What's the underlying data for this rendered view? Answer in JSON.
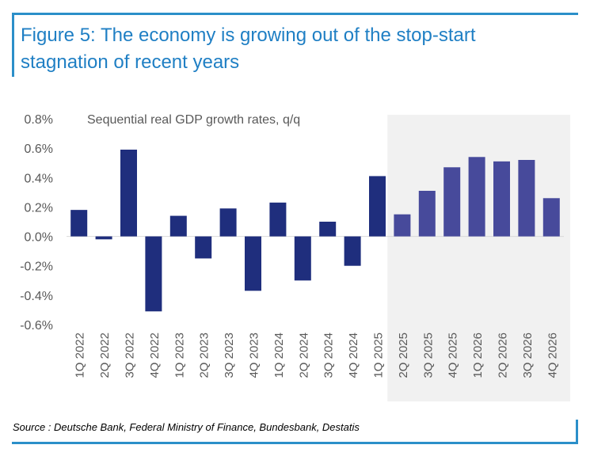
{
  "figure": {
    "title": "Figure 5: The economy is growing out of the stop-start stagnation of recent years",
    "source": "Source : Deutsche Bank, Federal Ministry of Finance, Bundesbank, Destatis",
    "accent_color": "#2b8fc9",
    "title_color": "#1f7fc4"
  },
  "chart_data": {
    "type": "bar",
    "subtitle": "Sequential real GDP growth rates, q/q",
    "xlabel": "",
    "ylabel": "",
    "ylim": [
      -0.6,
      0.8
    ],
    "yticks": [
      0.8,
      0.6,
      0.4,
      0.2,
      0.0,
      -0.2,
      -0.4,
      -0.6
    ],
    "ytick_labels": [
      "0.8%",
      "0.6%",
      "0.4%",
      "0.2%",
      "0.0%",
      "-0.2%",
      "-0.4%",
      "-0.6%"
    ],
    "grid": false,
    "categories": [
      "1Q 2022",
      "2Q 2022",
      "3Q 2022",
      "4Q 2022",
      "1Q 2023",
      "2Q 2023",
      "3Q 2023",
      "4Q 2023",
      "1Q 2024",
      "2Q 2024",
      "3Q 2024",
      "4Q 2024",
      "1Q 2025",
      "2Q 2025",
      "3Q 2025",
      "4Q 2025",
      "1Q 2026",
      "2Q 2026",
      "3Q 2026",
      "4Q 2026"
    ],
    "values": [
      0.18,
      -0.02,
      0.59,
      -0.51,
      0.14,
      -0.15,
      0.19,
      -0.37,
      0.23,
      -0.3,
      0.1,
      -0.2,
      0.41,
      0.15,
      0.31,
      0.47,
      0.54,
      0.51,
      0.52,
      0.26
    ],
    "forecast_start_index": 13,
    "colors": {
      "actual": "#1f2e7d",
      "forecast": "#474a9b",
      "forecast_shading": "#f1f1f1",
      "axis_text": "#595959"
    }
  }
}
